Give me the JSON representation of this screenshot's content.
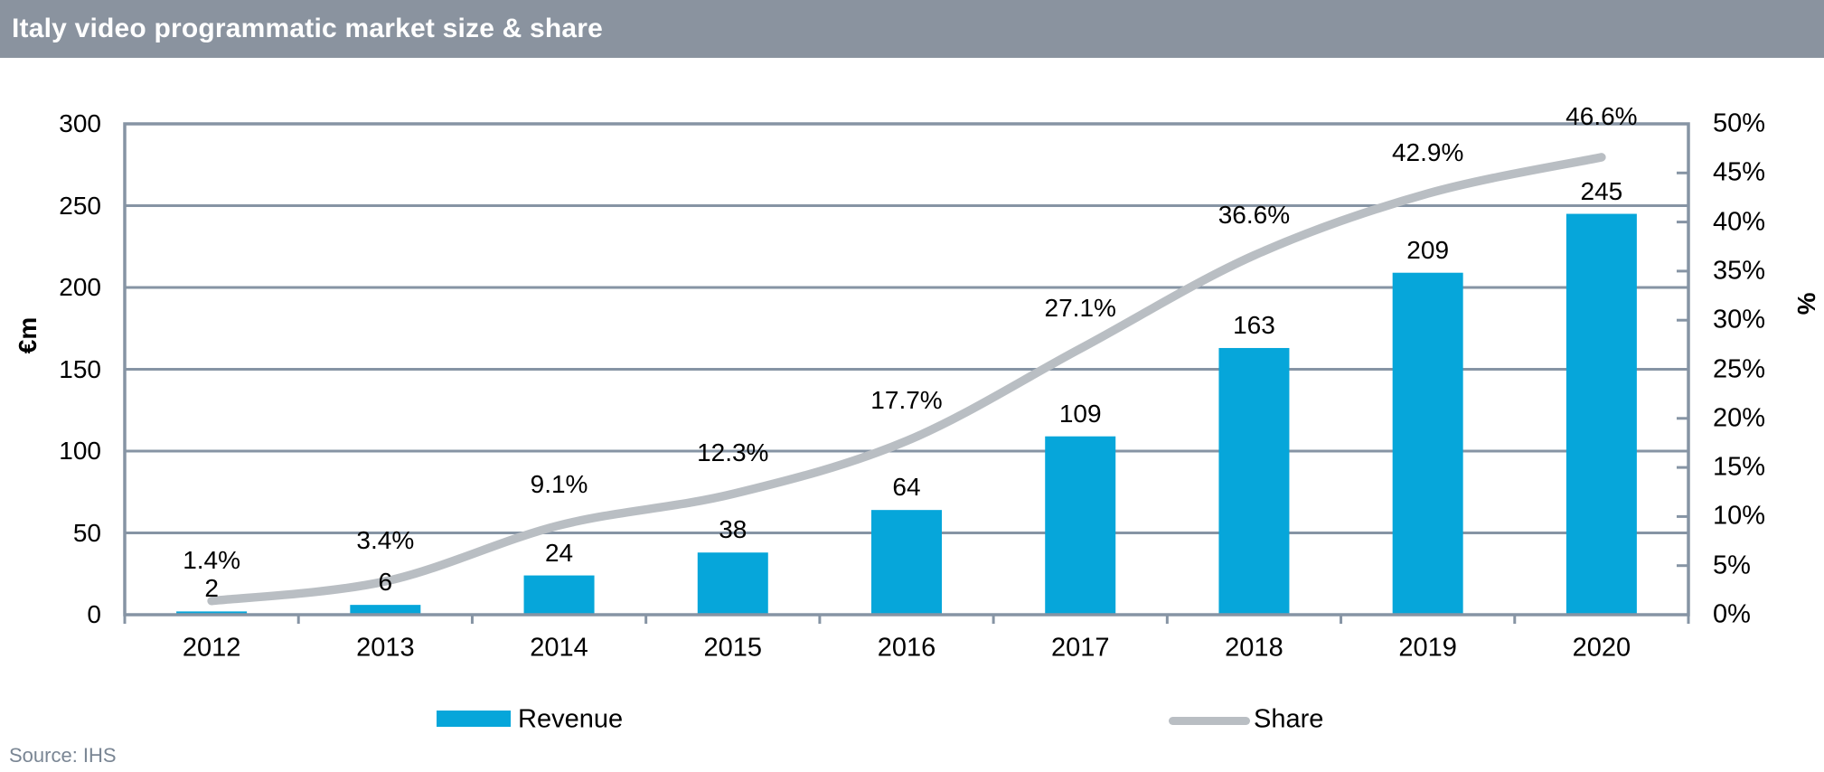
{
  "header": {
    "title": "Italy video programmatic market size & share",
    "bg_color": "#8A939F",
    "text_color": "#FFFFFF"
  },
  "source": {
    "label": "Source: IHS",
    "color": "#7A8694"
  },
  "chart_data": {
    "type": "bar+line combo",
    "title": "Italy video programmatic market size & share",
    "categories": [
      "2012",
      "2013",
      "2014",
      "2015",
      "2016",
      "2017",
      "2018",
      "2019",
      "2020"
    ],
    "series": [
      {
        "name": "Revenue",
        "type": "bar",
        "axis": "left",
        "unit": "€m",
        "color": "#06A6DA",
        "values": [
          2,
          6,
          24,
          38,
          64,
          109,
          163,
          209,
          245
        ],
        "labels": [
          "2",
          "6",
          "24",
          "38",
          "64",
          "109",
          "163",
          "209",
          "245"
        ]
      },
      {
        "name": "Share",
        "type": "line",
        "axis": "right",
        "unit": "%",
        "color": "#B9BEC3",
        "values": [
          1.4,
          3.4,
          9.1,
          12.3,
          17.7,
          27.1,
          36.6,
          42.9,
          46.6
        ],
        "labels": [
          "1.4%",
          "3.4%",
          "9.1%",
          "12.3%",
          "17.7%",
          "27.1%",
          "36.6%",
          "42.9%",
          "46.6%"
        ]
      }
    ],
    "left_axis": {
      "title": "€m",
      "min": 0,
      "max": 300,
      "step": 50,
      "tick_labels": [
        "0",
        "50",
        "100",
        "150",
        "200",
        "250",
        "300"
      ]
    },
    "right_axis": {
      "title": "%",
      "min": 0,
      "max": 50,
      "step": 5,
      "tick_labels": [
        "0%",
        "5%",
        "10%",
        "15%",
        "20%",
        "25%",
        "30%",
        "35%",
        "40%",
        "45%",
        "50%"
      ]
    },
    "grid": {
      "on": true,
      "color": "#8694A4",
      "line_color_light": "#B9BEC3"
    },
    "legend_position": "bottom",
    "text_color": "#000000"
  }
}
